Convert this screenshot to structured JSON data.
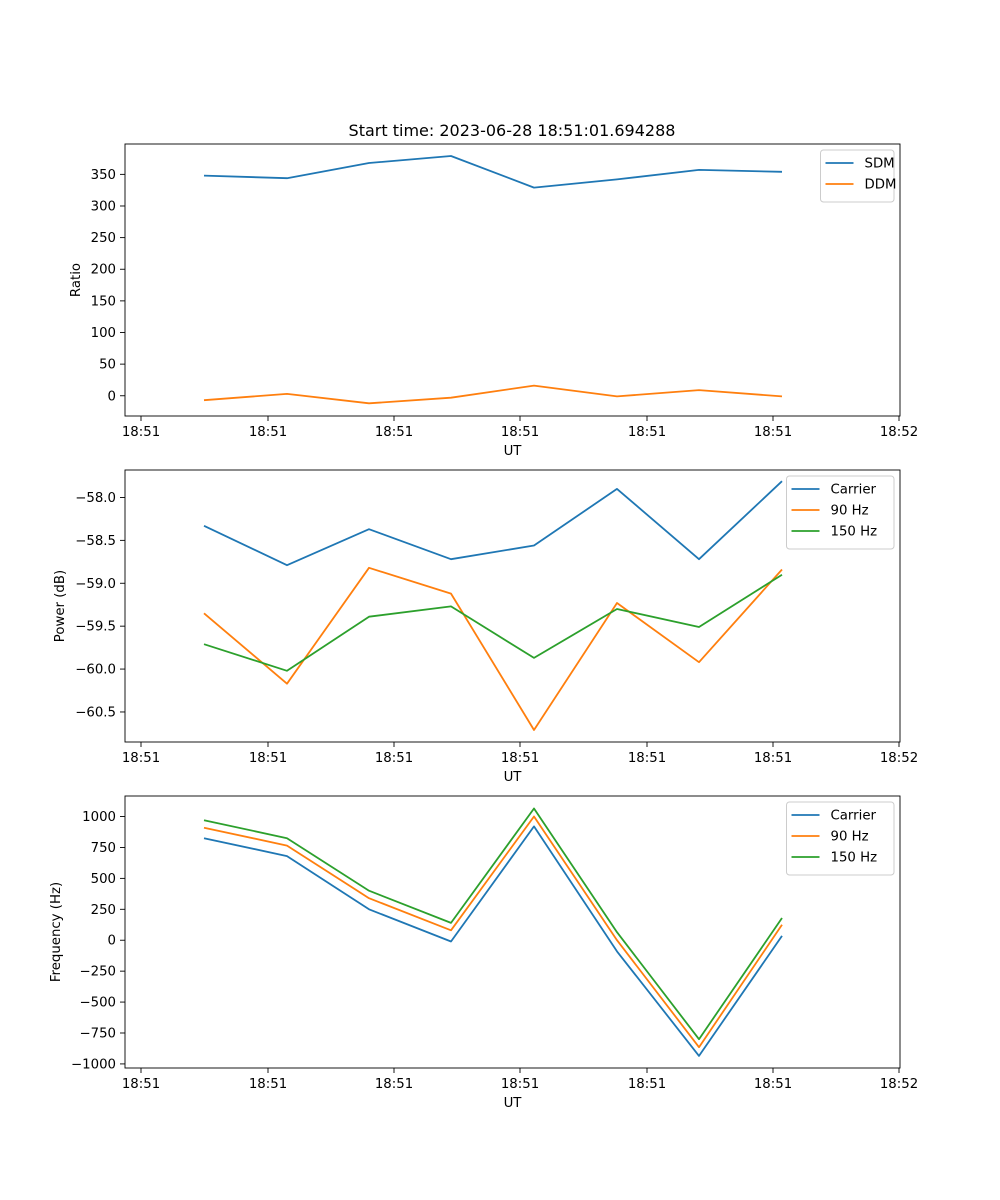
{
  "figure": {
    "title": "Start time: 2023-06-28 18:51:01.694288"
  },
  "chart_data": [
    {
      "type": "line",
      "title": "Start time: 2023-06-28 18:51:01.694288",
      "xlabel": "UT",
      "ylabel": "Ratio",
      "x_tick_labels": [
        "18:51",
        "18:51",
        "18:51",
        "18:51",
        "18:51",
        "18:51",
        "18:51",
        "18:52"
      ],
      "y_ticks": [
        0,
        50,
        100,
        150,
        200,
        250,
        300,
        350
      ],
      "y_tick_labels": [
        "0",
        "50",
        "100",
        "150",
        "200",
        "250",
        "300",
        "350"
      ],
      "ylim": [
        -32,
        398
      ],
      "legend": "top-right",
      "series": [
        {
          "name": "SDM",
          "color": "#1f77b4",
          "values": [
            348,
            344,
            368,
            379,
            329,
            342,
            357,
            354
          ]
        },
        {
          "name": "DDM",
          "color": "#ff7f0e",
          "values": [
            -7,
            3,
            -12,
            -3,
            16,
            -1,
            9,
            -1
          ]
        }
      ]
    },
    {
      "type": "line",
      "xlabel": "UT",
      "ylabel": "Power (dB)",
      "x_tick_labels": [
        "18:51",
        "18:51",
        "18:51",
        "18:51",
        "18:51",
        "18:51",
        "18:51",
        "18:52"
      ],
      "y_ticks": [
        -60.5,
        -60.0,
        -59.5,
        -59.0,
        -58.5,
        -58.0
      ],
      "y_tick_labels": [
        "−60.5",
        "−60.0",
        "−59.5",
        "−59.0",
        "−58.5",
        "−58.0"
      ],
      "ylim": [
        -60.85,
        -57.68
      ],
      "legend": "top-right",
      "series": [
        {
          "name": "Carrier",
          "color": "#1f77b4",
          "values": [
            -58.33,
            -58.79,
            -58.37,
            -58.72,
            -58.56,
            -57.9,
            -58.72,
            -57.81
          ]
        },
        {
          "name": "90 Hz",
          "color": "#ff7f0e",
          "values": [
            -59.35,
            -60.17,
            -58.82,
            -59.12,
            -60.71,
            -59.23,
            -59.92,
            -58.84
          ]
        },
        {
          "name": "150 Hz",
          "color": "#2ca02c",
          "values": [
            -59.71,
            -60.02,
            -59.39,
            -59.27,
            -59.87,
            -59.3,
            -59.51,
            -58.9
          ]
        }
      ]
    },
    {
      "type": "line",
      "xlabel": "UT",
      "ylabel": "Frequency (Hz)",
      "x_tick_labels": [
        "18:51",
        "18:51",
        "18:51",
        "18:51",
        "18:51",
        "18:51",
        "18:51",
        "18:52"
      ],
      "y_ticks": [
        -1000,
        -750,
        -500,
        -250,
        0,
        250,
        500,
        750,
        1000
      ],
      "y_tick_labels": [
        "−1000",
        "−750",
        "−500",
        "−250",
        "0",
        "250",
        "500",
        "750",
        "1000"
      ],
      "ylim": [
        -1033,
        1166
      ],
      "legend": "top-right",
      "series": [
        {
          "name": "Carrier",
          "color": "#1f77b4",
          "values": [
            825,
            680,
            250,
            -10,
            920,
            -90,
            -935,
            35
          ]
        },
        {
          "name": "90 Hz",
          "color": "#ff7f0e",
          "values": [
            910,
            765,
            340,
            80,
            1000,
            0,
            -865,
            125
          ]
        },
        {
          "name": "150 Hz",
          "color": "#2ca02c",
          "values": [
            970,
            825,
            400,
            140,
            1065,
            65,
            -800,
            180
          ]
        }
      ]
    }
  ]
}
